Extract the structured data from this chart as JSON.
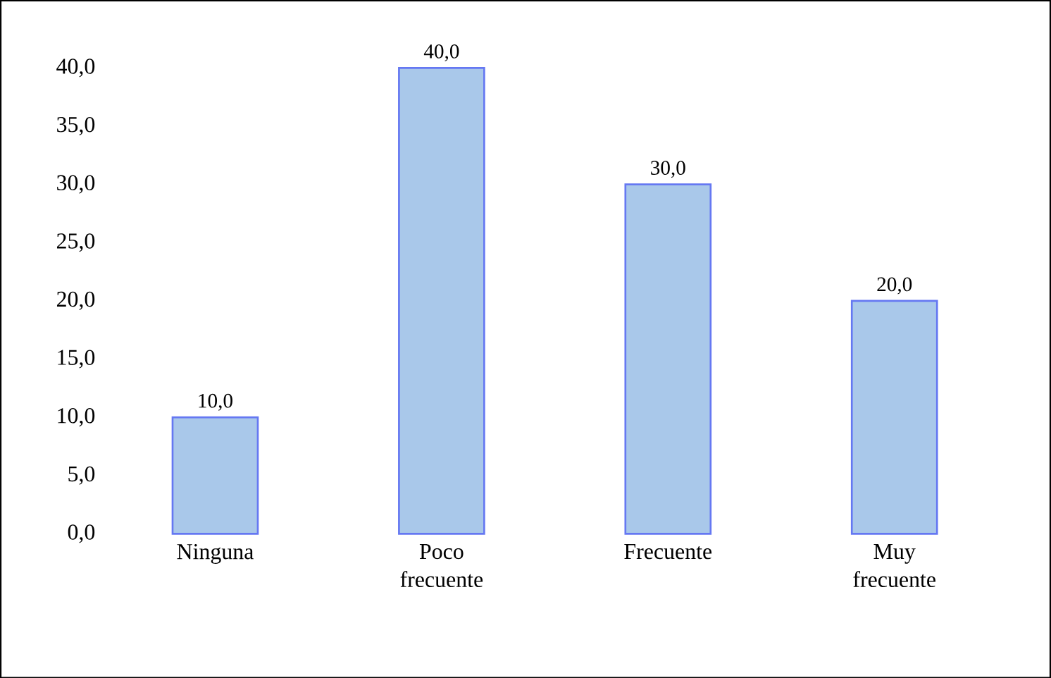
{
  "chart_data": {
    "type": "bar",
    "categories": [
      "Ninguna",
      "Poco frecuente",
      "Frecuente",
      "Muy frecuente"
    ],
    "values": [
      10.0,
      40.0,
      30.0,
      20.0
    ],
    "value_labels": [
      "10,0",
      "40,0",
      "30,0",
      "20,0"
    ],
    "color": "#a9c8ea",
    "ylim": [
      0,
      40
    ],
    "yticks": [
      {
        "value": 0,
        "label": "0,0"
      },
      {
        "value": 5,
        "label": "5,0"
      },
      {
        "value": 10,
        "label": "10,0"
      },
      {
        "value": 15,
        "label": "15,0"
      },
      {
        "value": 20,
        "label": "20,0"
      },
      {
        "value": 25,
        "label": "25,0"
      },
      {
        "value": 30,
        "label": "30,0"
      },
      {
        "value": 35,
        "label": "35,0"
      },
      {
        "value": 40,
        "label": "40,0"
      }
    ],
    "grid": false
  }
}
